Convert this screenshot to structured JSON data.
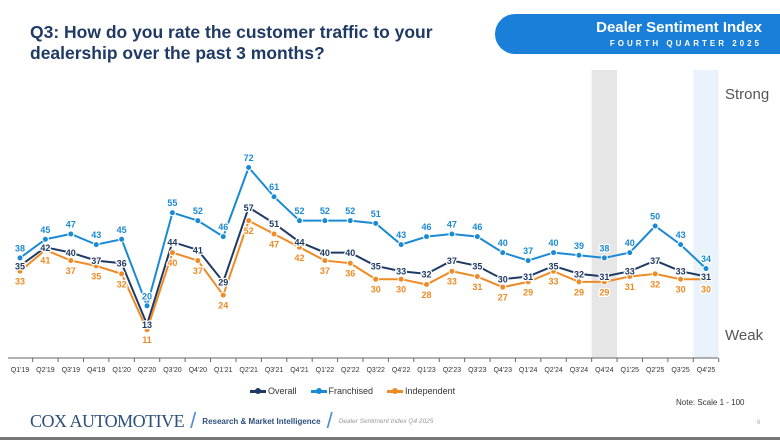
{
  "header": {
    "title": "Q3: How do you rate the customer traffic to your dealership over the past 3 months?",
    "banner_title": "Dealer Sentiment Index",
    "banner_subtitle": "FOURTH QUARTER 2025"
  },
  "chart_data": {
    "type": "line",
    "categories": [
      "Q1'19",
      "Q2'19",
      "Q3'19",
      "Q4'19",
      "Q1'20",
      "Q2'20",
      "Q3'20",
      "Q4'20",
      "Q1'21",
      "Q2'21",
      "Q3'21",
      "Q4'21",
      "Q1'22",
      "Q2'22",
      "Q3'22",
      "Q4'22",
      "Q1'23",
      "Q2'23",
      "Q3'23",
      "Q4'23",
      "Q1'24",
      "Q2'24",
      "Q3'24",
      "Q4'24",
      "Q1'25",
      "Q2'25",
      "Q3'25",
      "Q4'25"
    ],
    "series": [
      {
        "name": "Overall",
        "color": "#1f3a64",
        "values": [
          35,
          42,
          40,
          37,
          36,
          13,
          44,
          41,
          29,
          57,
          51,
          44,
          40,
          40,
          35,
          33,
          32,
          37,
          35,
          30,
          31,
          35,
          32,
          31,
          33,
          37,
          33,
          31
        ]
      },
      {
        "name": "Franchised",
        "color": "#1a8ad4",
        "values": [
          38,
          45,
          47,
          43,
          45,
          20,
          55,
          52,
          46,
          72,
          61,
          52,
          52,
          52,
          51,
          43,
          46,
          47,
          46,
          40,
          37,
          40,
          39,
          38,
          40,
          50,
          43,
          34
        ]
      },
      {
        "name": "Independent",
        "color": "#f08a24",
        "values": [
          33,
          41,
          37,
          35,
          32,
          11,
          40,
          37,
          24,
          52,
          47,
          42,
          37,
          36,
          30,
          30,
          28,
          33,
          31,
          27,
          29,
          33,
          29,
          29,
          31,
          32,
          30,
          30
        ]
      }
    ],
    "ylim": [
      0,
      100
    ],
    "y_level_labels": {
      "high": "Strong",
      "low": "Weak"
    },
    "highlighted_categories": [
      {
        "category": "Q4'24",
        "color": "#e6e6e6"
      },
      {
        "category": "Q4'25",
        "color": "#eaf2fc"
      }
    ],
    "grid": false,
    "legend": "bottom",
    "note": "Note: Scale 1 - 100"
  },
  "footer": {
    "logo": "COX AUTOMOTIVE",
    "group": "Research & Market Intelligence",
    "report": "Dealer Sentiment Index Q4 2025",
    "page": "6"
  }
}
